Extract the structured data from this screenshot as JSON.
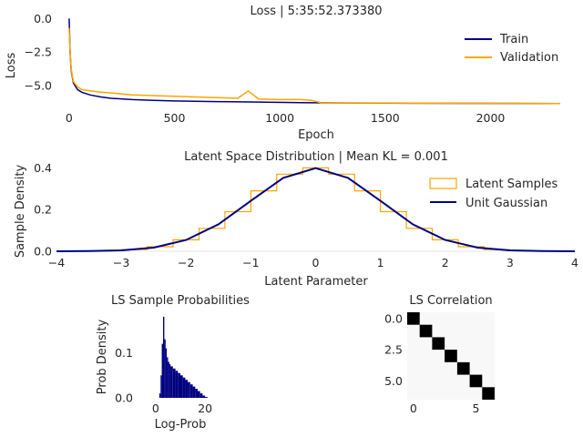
{
  "chart_data": [
    {
      "id": "loss",
      "type": "line",
      "title": "Loss | 5:35:52.373380",
      "xlabel": "Epoch",
      "ylabel": "Loss",
      "xlim": [
        -60,
        2400
      ],
      "ylim": [
        -6.7,
        0.7
      ],
      "xticks": [
        0,
        500,
        1000,
        1500,
        2000
      ],
      "yticks": [
        0.0,
        -2.5,
        -5.0
      ],
      "ytick_labels": [
        "0.0",
        "−2.5",
        "−5.0"
      ],
      "legend_loc": "upper-right",
      "series": [
        {
          "name": "Train",
          "color": "#000080",
          "x": [
            0,
            5,
            10,
            20,
            40,
            60,
            100,
            150,
            200,
            300,
            400,
            500,
            700,
            900,
            1100,
            1300,
            1600,
            2000,
            2330
          ],
          "y": [
            0.0,
            -2.6,
            -3.9,
            -4.8,
            -5.3,
            -5.5,
            -5.7,
            -5.85,
            -5.95,
            -6.05,
            -6.1,
            -6.15,
            -6.2,
            -6.23,
            -6.27,
            -6.3,
            -6.32,
            -6.33,
            -6.34
          ]
        },
        {
          "name": "Validation",
          "color": "#ffa500",
          "x": [
            0,
            5,
            10,
            20,
            40,
            60,
            100,
            150,
            200,
            300,
            400,
            500,
            600,
            700,
            800,
            850,
            900,
            1000,
            1100,
            1150,
            1200,
            1500,
            2000,
            2330
          ],
          "y": [
            -0.7,
            -2.5,
            -3.8,
            -4.7,
            -5.1,
            -5.3,
            -5.4,
            -5.5,
            -5.55,
            -5.7,
            -5.75,
            -5.8,
            -5.85,
            -5.9,
            -5.95,
            -5.4,
            -6.0,
            -6.05,
            -6.05,
            -6.1,
            -6.3,
            -6.3,
            -6.32,
            -6.35
          ]
        }
      ]
    },
    {
      "id": "latent",
      "type": "line",
      "title": "Latent Space Distribution | Mean KL = 0.001",
      "xlabel": "Latent Parameter",
      "ylabel": "Sample Density",
      "xlim": [
        -4,
        4
      ],
      "ylim": [
        0,
        0.45
      ],
      "xticks": [
        -4,
        -3,
        -2,
        -1,
        0,
        1,
        2,
        3,
        4
      ],
      "xtick_labels": [
        "−4",
        "−3",
        "−2",
        "−1",
        "0",
        "1",
        "2",
        "3",
        "4"
      ],
      "yticks": [
        0.0,
        0.2,
        0.4
      ],
      "ytick_labels": [
        "0.0",
        "0.2",
        "0.4"
      ],
      "legend_loc": "upper-right",
      "series": [
        {
          "name": "Latent Samples",
          "color": "#ffa500",
          "style": "step-histogram",
          "x": [
            -2.8,
            -2.4,
            -2.0,
            -1.6,
            -1.2,
            -0.8,
            -0.4,
            0.0,
            0.4,
            0.8,
            1.2,
            1.6,
            2.0,
            2.4,
            2.8
          ],
          "y": [
            0.008,
            0.022,
            0.055,
            0.11,
            0.19,
            0.29,
            0.37,
            0.4,
            0.37,
            0.29,
            0.19,
            0.11,
            0.055,
            0.022,
            0.008
          ]
        },
        {
          "name": "Unit Gaussian",
          "color": "#000080",
          "style": "line",
          "x": [
            -4,
            -3.5,
            -3,
            -2.5,
            -2,
            -1.5,
            -1,
            -0.5,
            0,
            0.5,
            1,
            1.5,
            2,
            2.5,
            3,
            3.5,
            4
          ],
          "y": [
            0.0001,
            0.0009,
            0.0044,
            0.0175,
            0.054,
            0.1295,
            0.242,
            0.352,
            0.399,
            0.352,
            0.242,
            0.1295,
            0.054,
            0.0175,
            0.0044,
            0.0009,
            0.0001
          ]
        }
      ]
    },
    {
      "id": "probs",
      "type": "bar",
      "title": "LS Sample Probabilities",
      "xlabel": "Log-Prob",
      "ylabel": "Prob Density",
      "xlim": [
        -4,
        24
      ],
      "ylim": [
        0,
        0.19
      ],
      "xticks": [
        0,
        20
      ],
      "yticks": [
        0.0,
        0.1
      ],
      "ytick_labels": [
        "0.0",
        "0.1"
      ],
      "color": "#000080",
      "x": [
        1.5,
        2.0,
        2.5,
        3.0,
        3.5,
        4.0,
        4.5,
        5.0,
        5.5,
        6.0,
        7.0,
        8.0,
        9.0,
        10.0,
        11.0,
        12.0,
        13.0,
        14.0,
        15.0,
        16.0,
        17.0,
        18.0,
        19.0,
        20.0
      ],
      "y": [
        0.01,
        0.05,
        0.12,
        0.18,
        0.13,
        0.11,
        0.09,
        0.08,
        0.075,
        0.07,
        0.065,
        0.06,
        0.055,
        0.05,
        0.045,
        0.04,
        0.035,
        0.03,
        0.025,
        0.02,
        0.015,
        0.01,
        0.005,
        0.002
      ]
    },
    {
      "id": "corr",
      "type": "heatmap",
      "title": "LS Correlation",
      "xticks": [
        0,
        5
      ],
      "yticks": [
        0.0,
        2.5,
        5.0
      ],
      "ytick_labels": [
        "0.0",
        "2.5",
        "5.0"
      ],
      "size": 7,
      "diagonal": [
        1,
        1,
        1,
        1,
        1,
        1,
        1
      ]
    }
  ]
}
